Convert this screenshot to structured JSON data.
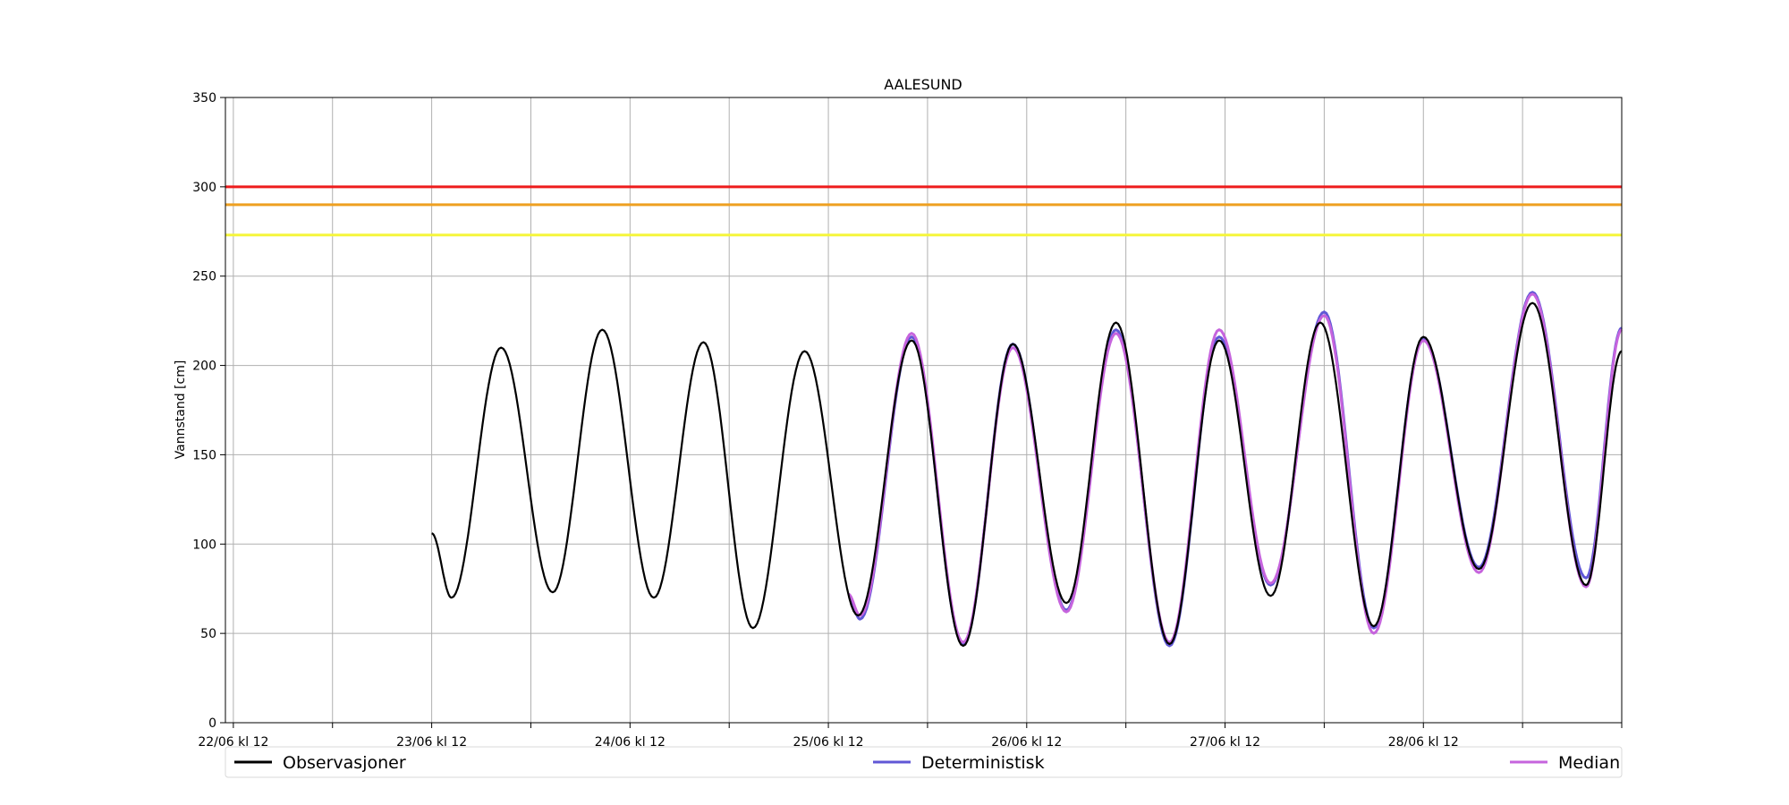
{
  "chart_data": {
    "type": "line",
    "title": "AALESUND",
    "ylabel": "Vannstand [cm]",
    "xlabel": "",
    "ylim": [
      0,
      350
    ],
    "y_ticks": [
      0,
      50,
      100,
      150,
      200,
      250,
      300,
      350
    ],
    "x_range_days": [
      -0.04,
      7.0
    ],
    "x_tick_labels": [
      "22/06 kl 12",
      "23/06 kl 12",
      "24/06 kl 12",
      "25/06 kl 12",
      "26/06 kl 12",
      "27/06 kl 12",
      "28/06 kl 12",
      ""
    ],
    "grid": true,
    "legend_placement": "below",
    "thresholds": [
      {
        "value": 300,
        "color": "#ee1c1c"
      },
      {
        "value": 290,
        "color": "#eea021"
      },
      {
        "value": 273,
        "color": "#f5f53c"
      }
    ],
    "series": [
      {
        "name": "Observasjoner",
        "color": "#000000",
        "start_day": 1.0,
        "extrema": [
          [
            1.0,
            106
          ],
          [
            1.1,
            70
          ],
          [
            1.35,
            210
          ],
          [
            1.61,
            73
          ],
          [
            1.86,
            220
          ],
          [
            2.12,
            70
          ],
          [
            2.37,
            213
          ],
          [
            2.62,
            53
          ],
          [
            2.88,
            208
          ],
          [
            3.15,
            60
          ],
          [
            3.42,
            214
          ],
          [
            3.68,
            43
          ],
          [
            3.93,
            212
          ],
          [
            4.2,
            67
          ],
          [
            4.45,
            224
          ],
          [
            4.72,
            44
          ],
          [
            4.97,
            214
          ],
          [
            5.23,
            71
          ],
          [
            5.48,
            224
          ],
          [
            5.75,
            54
          ],
          [
            6.0,
            216
          ],
          [
            6.28,
            86
          ],
          [
            6.55,
            235
          ],
          [
            6.82,
            77
          ],
          [
            7.0,
            208
          ]
        ]
      },
      {
        "name": "Deterministisk",
        "color": "#6057d6",
        "start_day": 3.1,
        "extrema": [
          [
            3.1,
            71
          ],
          [
            3.16,
            58
          ],
          [
            3.42,
            216
          ],
          [
            3.68,
            44
          ],
          [
            3.93,
            212
          ],
          [
            4.2,
            63
          ],
          [
            4.45,
            220
          ],
          [
            4.72,
            43
          ],
          [
            4.97,
            216
          ],
          [
            5.23,
            77
          ],
          [
            5.5,
            230
          ],
          [
            5.75,
            53
          ],
          [
            6.0,
            215
          ],
          [
            6.28,
            87
          ],
          [
            6.55,
            241
          ],
          [
            6.82,
            81
          ],
          [
            7.0,
            221
          ]
        ]
      },
      {
        "name": "Median",
        "color": "#c664dd",
        "start_day": 3.1,
        "extrema": [
          [
            3.1,
            72
          ],
          [
            3.16,
            60
          ],
          [
            3.42,
            218
          ],
          [
            3.68,
            45
          ],
          [
            3.93,
            210
          ],
          [
            4.2,
            62
          ],
          [
            4.45,
            218
          ],
          [
            4.72,
            45
          ],
          [
            4.97,
            220
          ],
          [
            5.23,
            78
          ],
          [
            5.5,
            228
          ],
          [
            5.75,
            50
          ],
          [
            6.0,
            214
          ],
          [
            6.28,
            84
          ],
          [
            6.55,
            240
          ],
          [
            6.82,
            76
          ],
          [
            7.0,
            220
          ]
        ]
      }
    ]
  }
}
